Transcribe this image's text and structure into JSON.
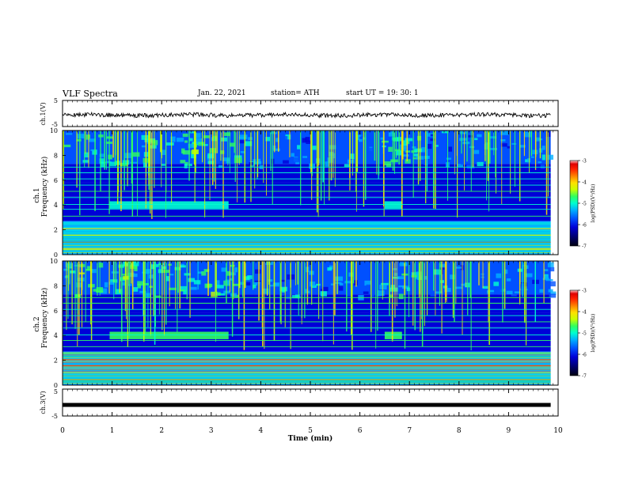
{
  "header": {
    "title": "VLF Spectra",
    "date": "Jan. 22, 2021",
    "station": "station= ATH",
    "start_ut": "start  UT =   19: 30: 1"
  },
  "chart_data": [
    {
      "type": "line",
      "panel": "ch1-waveform",
      "ylabel": "ch.1(V)",
      "ylim": [
        -5,
        5
      ],
      "yticks": [
        "5",
        "-5"
      ],
      "x": [
        0,
        10
      ],
      "series": [
        {
          "values_approx": [
            -0.6,
            -0.6
          ]
        }
      ],
      "line_color": "#000000"
    },
    {
      "type": "heatmap",
      "panel": "ch1-spectrogram",
      "ylabel_top": "ch.1",
      "ylabel": "Frequency  (kHz)",
      "ylim": [
        0,
        10
      ],
      "yticks": [
        "0",
        "2",
        "4",
        "6",
        "8",
        "10"
      ],
      "xlim": [
        0,
        10
      ],
      "data_end_min": 9.85,
      "bands_khz": [
        0.45,
        1.0,
        1.55,
        2.1,
        2.55,
        3.1,
        3.65,
        4.05,
        4.6,
        5.1,
        5.6,
        6.1,
        6.6,
        7.05
      ],
      "bursts_min": [
        [
          0.95,
          3.35
        ],
        [
          6.5,
          6.85
        ]
      ],
      "burst_freq_khz": [
        3.7,
        4.3
      ],
      "colorbar": {
        "label": "log(PSD)(V²/Hz)",
        "range": [
          -7,
          -3
        ],
        "ticks": [
          "-3",
          "-4",
          "-5",
          "-6",
          "-7"
        ]
      }
    },
    {
      "type": "heatmap",
      "panel": "ch2-spectrogram",
      "ylabel_top": "ch.2",
      "ylabel": "Frequency  (kHz)",
      "ylim": [
        0,
        10
      ],
      "yticks": [
        "0",
        "2",
        "4",
        "6",
        "8",
        "10"
      ],
      "xlim": [
        0,
        10
      ],
      "data_end_min": 9.85,
      "bands_khz": [
        0.45,
        1.0,
        1.55,
        2.05,
        2.6,
        3.1,
        3.6,
        4.05,
        4.6,
        5.1,
        5.6,
        6.1,
        6.6,
        7.05
      ],
      "bursts_min": [
        [
          0.95,
          3.35
        ],
        [
          6.5,
          6.85
        ]
      ],
      "burst_freq_khz": [
        3.7,
        4.3
      ],
      "colorbar": {
        "label": "log(PSD)(V²/Hz)",
        "range": [
          -7,
          -3
        ],
        "ticks": [
          "-3",
          "-4",
          "-5",
          "-6",
          "-7"
        ]
      }
    },
    {
      "type": "line",
      "panel": "ch3-waveform",
      "ylabel": "ch.3(V)",
      "ylim": [
        -5,
        5
      ],
      "yticks": [
        "5",
        "-5"
      ],
      "x": [
        0,
        9.85
      ],
      "series": [
        {
          "values_approx": [
            -0.9,
            -0.9
          ]
        }
      ],
      "line_color": "#000000"
    }
  ],
  "xaxis": {
    "label": "Time  (min)",
    "range": [
      0,
      10
    ],
    "ticks": [
      "0",
      "1",
      "2",
      "3",
      "4",
      "5",
      "6",
      "7",
      "8",
      "9",
      "10"
    ]
  },
  "colormap": [
    "#000010",
    "#00007a",
    "#0000d8",
    "#0050ff",
    "#00b0ff",
    "#00ffd0",
    "#30ff60",
    "#c8ff00",
    "#ffe000",
    "#ff8000",
    "#ff2000",
    "#e00000",
    "#ffc8c8"
  ]
}
